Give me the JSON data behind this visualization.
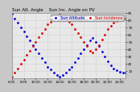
{
  "title": "Sun Alt. Angle    Sun Inc. Angle on PV",
  "legend_blue": "Sun Altitude",
  "legend_red": "Sun Incidence",
  "bg_color": "#c8c8c8",
  "plot_bg": "#e8e8e8",
  "blue_color": "#0000dd",
  "red_color": "#dd0000",
  "ylim": [
    0,
    90
  ],
  "ytick_values": [
    10,
    20,
    30,
    40,
    50,
    60,
    70,
    80,
    90
  ],
  "blue_x": [
    0,
    1,
    2,
    3,
    4,
    5,
    6,
    7,
    8,
    9,
    10,
    11,
    12,
    13,
    14,
    15,
    16,
    17,
    18,
    19,
    20,
    21,
    22,
    23,
    24,
    25,
    26,
    27,
    28,
    29,
    30,
    31,
    32,
    33,
    34,
    35,
    36,
    37,
    38
  ],
  "blue_y": [
    88,
    82,
    76,
    70,
    64,
    58,
    52,
    46,
    40,
    34,
    28,
    22,
    16,
    12,
    8,
    5,
    3,
    5,
    8,
    12,
    16,
    22,
    28,
    34,
    40,
    46,
    52,
    55,
    50,
    44,
    37,
    30,
    23,
    18,
    14,
    11,
    9,
    8,
    8
  ],
  "red_x": [
    0,
    1,
    2,
    3,
    4,
    5,
    6,
    7,
    8,
    9,
    10,
    11,
    12,
    13,
    14,
    15,
    16,
    17,
    18,
    19,
    20,
    21,
    22,
    23,
    24,
    25,
    26,
    27,
    28,
    29,
    30,
    31,
    32,
    33,
    34,
    35,
    36,
    37,
    38
  ],
  "red_y": [
    2,
    8,
    14,
    20,
    26,
    32,
    38,
    44,
    50,
    56,
    62,
    68,
    74,
    78,
    82,
    85,
    87,
    85,
    82,
    78,
    74,
    68,
    62,
    56,
    50,
    44,
    38,
    35,
    40,
    46,
    53,
    60,
    67,
    72,
    76,
    79,
    81,
    82,
    82
  ],
  "xlim": [
    0,
    38
  ],
  "xlabel_ticks": [
    0,
    4,
    8,
    12,
    16,
    20,
    24,
    28,
    32,
    36
  ],
  "xlabel_labels": [
    "6:00",
    "8:00",
    "10:00",
    "12:00",
    "14:00",
    "16:00",
    "18:00",
    "20:00",
    "22:00",
    "24:00"
  ],
  "grid_color": "#aaaaaa",
  "title_fontsize": 4.0,
  "tick_fontsize": 3.0,
  "legend_fontsize": 3.5,
  "marker_size": 1.0,
  "linewidth": 0
}
